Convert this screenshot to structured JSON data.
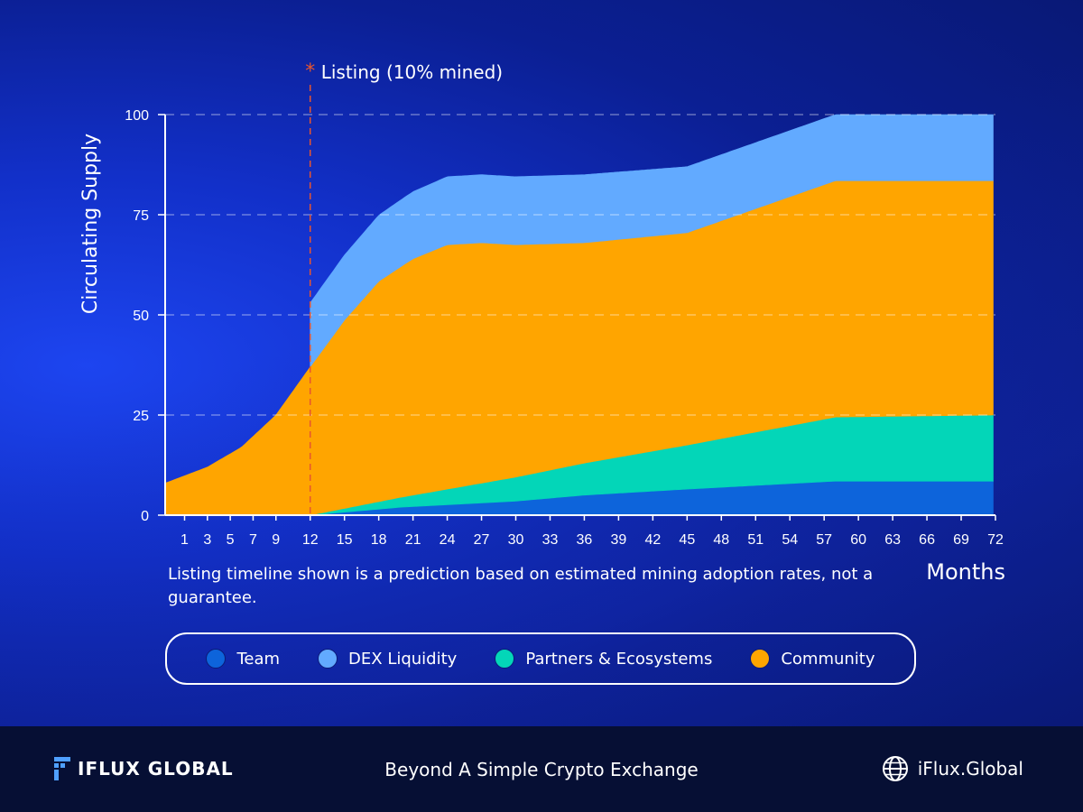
{
  "chart_data": {
    "type": "area",
    "stacked": true,
    "ylabel": "Circulating Supply",
    "xlabel": "Months",
    "ylim": [
      0,
      100
    ],
    "yticks": [
      0,
      25,
      50,
      75,
      100
    ],
    "xticks": [
      "1",
      "3",
      "5",
      "7",
      "9",
      "12",
      "15",
      "18",
      "21",
      "24",
      "27",
      "30",
      "33",
      "36",
      "39",
      "42",
      "45",
      "48",
      "51",
      "54",
      "57",
      "60",
      "63",
      "66",
      "69",
      "72"
    ],
    "annotation": {
      "label": "Listing (10% mined)",
      "marker": "*",
      "x_month": 12
    },
    "series": [
      {
        "name": "Team",
        "color": "#0d64db",
        "points": [
          [
            12,
            0
          ],
          [
            20,
            2
          ],
          [
            30,
            3.5
          ],
          [
            36,
            5
          ],
          [
            45,
            6.5
          ],
          [
            58,
            8.5
          ],
          [
            72,
            8.5
          ]
        ]
      },
      {
        "name": "Partners & Ecosystems",
        "color": "#03d6b8",
        "points": [
          [
            12,
            0
          ],
          [
            20,
            2.5
          ],
          [
            30,
            6
          ],
          [
            36,
            8
          ],
          [
            45,
            11
          ],
          [
            58,
            16
          ],
          [
            72,
            16.5
          ]
        ]
      },
      {
        "name": "Community",
        "color": "#ffa500",
        "points": [
          [
            -0.7,
            8
          ],
          [
            3,
            12
          ],
          [
            6,
            17
          ],
          [
            9,
            25
          ],
          [
            12,
            37
          ],
          [
            15,
            47
          ],
          [
            18,
            55
          ],
          [
            21,
            59
          ],
          [
            24,
            61
          ],
          [
            27,
            60
          ],
          [
            30,
            58
          ],
          [
            36,
            55
          ],
          [
            45,
            53
          ],
          [
            58,
            59
          ],
          [
            72,
            58.5
          ]
        ]
      },
      {
        "name": "DEX Liquidity",
        "color": "#62aaff",
        "points": [
          [
            12,
            16
          ],
          [
            18,
            16.5
          ],
          [
            24,
            17
          ],
          [
            30,
            17
          ],
          [
            36,
            17
          ],
          [
            45,
            16.5
          ],
          [
            58,
            16.5
          ],
          [
            72,
            16.5
          ]
        ]
      }
    ]
  },
  "legend": {
    "items": [
      {
        "label": "Team",
        "color": "#0d64db"
      },
      {
        "label": "DEX Liquidity",
        "color": "#62aaff"
      },
      {
        "label": "Partners & Ecosystems",
        "color": "#03d6b8"
      },
      {
        "label": "Community",
        "color": "#ffa500"
      }
    ]
  },
  "note": "Listing timeline shown is a prediction based on estimated mining adoption rates, not a guarantee.",
  "footer": {
    "brand": "IFLUX GLOBAL",
    "tagline": "Beyond A Simple Crypto Exchange",
    "website": "iFlux.Global"
  }
}
